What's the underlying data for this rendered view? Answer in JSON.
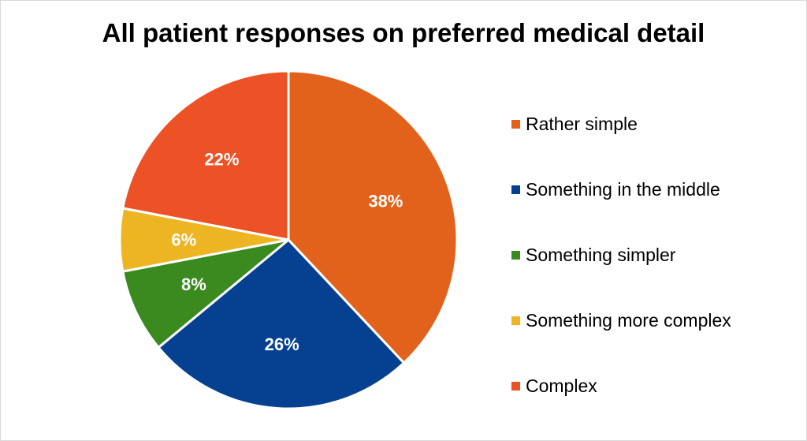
{
  "chart_data": {
    "type": "pie",
    "title": "All patient responses on preferred medical detail",
    "legend_position": "right",
    "slices": [
      {
        "label": "Rather simple",
        "value": 38,
        "display": "38%",
        "color": "#E2621B"
      },
      {
        "label": "Something in the middle",
        "value": 26,
        "display": "26%",
        "color": "#054190"
      },
      {
        "label": "Something simpler",
        "value": 8,
        "display": "8%",
        "color": "#3A8A1F"
      },
      {
        "label": "Something more complex",
        "value": 6,
        "display": "6%",
        "color": "#EEB522"
      },
      {
        "label": "Complex",
        "value": 22,
        "display": "22%",
        "color": "#EC5225"
      }
    ]
  }
}
